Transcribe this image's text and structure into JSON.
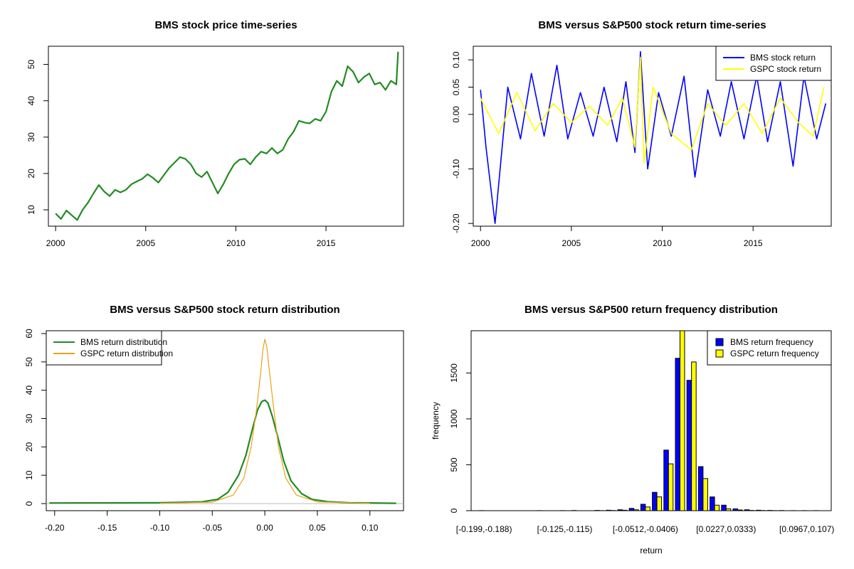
{
  "chart_data": [
    {
      "type": "line",
      "title": "BMS stock price time-series",
      "xlabel": "",
      "ylabel": "",
      "xlim": [
        1999.6,
        2019.3
      ],
      "ylim": [
        5.5,
        55
      ],
      "x_ticks": [
        2000,
        2005,
        2010,
        2015
      ],
      "y_ticks": [
        10,
        20,
        30,
        40,
        50
      ],
      "grid": false,
      "series": [
        {
          "color": "#228B22",
          "x": [
            2000.0,
            2000.3,
            2000.6,
            2000.9,
            2001.2,
            2001.5,
            2001.8,
            2002.1,
            2002.4,
            2002.7,
            2003.0,
            2003.3,
            2003.6,
            2003.9,
            2004.2,
            2004.5,
            2004.8,
            2005.1,
            2005.4,
            2005.7,
            2006.0,
            2006.3,
            2006.6,
            2006.9,
            2007.2,
            2007.5,
            2007.8,
            2008.1,
            2008.4,
            2008.7,
            2009.0,
            2009.3,
            2009.6,
            2009.9,
            2010.2,
            2010.5,
            2010.8,
            2011.1,
            2011.4,
            2011.7,
            2012.0,
            2012.3,
            2012.6,
            2012.9,
            2013.2,
            2013.5,
            2013.8,
            2014.1,
            2014.4,
            2014.7,
            2015.0,
            2015.3,
            2015.6,
            2015.9,
            2016.2,
            2016.5,
            2016.8,
            2017.1,
            2017.4,
            2017.7,
            2018.0,
            2018.3,
            2018.6,
            2018.9,
            2019.0
          ],
          "y": [
            9,
            7.5,
            9.8,
            8.5,
            7.2,
            10,
            12,
            14.5,
            16.8,
            15,
            13.8,
            15.5,
            14.8,
            15.5,
            17,
            17.8,
            18.5,
            19.8,
            18.8,
            17.5,
            19.5,
            21.5,
            23,
            24.5,
            24,
            22.5,
            20,
            19,
            20.5,
            17.5,
            14.5,
            17,
            20,
            22.5,
            23.8,
            24,
            22.5,
            24.5,
            26,
            25.5,
            27,
            25.5,
            26.5,
            29.5,
            31.5,
            34.5,
            34,
            33.8,
            35,
            34.5,
            37,
            42.5,
            45.5,
            44,
            49.5,
            48,
            45,
            46.5,
            47.5,
            44.5,
            45,
            43,
            45.5,
            44.5,
            53.5
          ]
        }
      ]
    },
    {
      "type": "line",
      "title": "BMS versus S&P500 stock return time-series",
      "xlabel": "",
      "ylabel": "",
      "xlim": [
        1999.6,
        2019.3
      ],
      "ylim": [
        -0.205,
        0.125
      ],
      "x_ticks": [
        2000,
        2005,
        2010,
        2015
      ],
      "y_ticks": [
        -0.2,
        -0.1,
        0.0,
        0.05,
        0.1
      ],
      "y_tick_labels": [
        "-0.20",
        "-0.10",
        "0.00",
        "0.05",
        "0.10"
      ],
      "grid": false,
      "legend": "top-right",
      "series": [
        {
          "name": "BMS stock return",
          "color": "#0000FF",
          "x": [
            2000.0,
            2000.3,
            2000.8,
            2001.5,
            2002.2,
            2002.8,
            2003.5,
            2004.2,
            2004.8,
            2005.5,
            2006.2,
            2006.8,
            2007.5,
            2008.0,
            2008.5,
            2008.8,
            2009.2,
            2009.8,
            2010.5,
            2011.2,
            2011.8,
            2012.5,
            2013.2,
            2013.8,
            2014.5,
            2015.2,
            2015.8,
            2016.5,
            2017.2,
            2017.8,
            2018.5,
            2019.0
          ],
          "y": [
            0.045,
            -0.06,
            -0.2,
            0.05,
            -0.045,
            0.075,
            -0.04,
            0.09,
            -0.045,
            0.04,
            -0.04,
            0.05,
            -0.05,
            0.06,
            -0.07,
            0.115,
            -0.1,
            0.04,
            -0.04,
            0.07,
            -0.115,
            0.045,
            -0.04,
            0.06,
            -0.045,
            0.07,
            -0.05,
            0.06,
            -0.095,
            0.07,
            -0.045,
            0.02
          ]
        },
        {
          "name": "GSPC stock return",
          "color": "#FFFF00",
          "x": [
            2000.0,
            2001.0,
            2002.0,
            2003.0,
            2004.0,
            2005.0,
            2006.0,
            2007.0,
            2007.8,
            2008.5,
            2008.8,
            2009.0,
            2009.5,
            2010.5,
            2011.6,
            2012.5,
            2013.5,
            2014.5,
            2015.5,
            2016.5,
            2017.5,
            2018.3,
            2018.9
          ],
          "y": [
            0.03,
            -0.035,
            0.04,
            -0.03,
            0.02,
            -0.015,
            0.015,
            -0.02,
            0.03,
            -0.06,
            0.105,
            -0.09,
            0.05,
            -0.035,
            -0.065,
            0.02,
            -0.02,
            0.02,
            -0.035,
            0.03,
            -0.015,
            -0.04,
            0.05
          ]
        }
      ]
    },
    {
      "type": "line",
      "title": "BMS versus S&P500 stock return distribution",
      "xlabel": "",
      "ylabel": "",
      "xlim": [
        -0.208,
        0.132
      ],
      "ylim": [
        -2.5,
        61
      ],
      "x_ticks": [
        -0.2,
        -0.15,
        -0.1,
        -0.05,
        0.0,
        0.05,
        0.1
      ],
      "x_tick_labels": [
        "-0.20",
        "-0.15",
        "-0.10",
        "-0.05",
        "0.00",
        "0.05",
        "0.10"
      ],
      "y_ticks": [
        0,
        10,
        20,
        30,
        40,
        50,
        60
      ],
      "grid": false,
      "legend": "top-left",
      "series": [
        {
          "name": "BMS return distribution",
          "color": "#228B22",
          "x": [
            -0.205,
            -0.1,
            -0.06,
            -0.045,
            -0.035,
            -0.025,
            -0.018,
            -0.012,
            -0.007,
            -0.003,
            0.0,
            0.003,
            0.007,
            0.012,
            0.018,
            0.025,
            0.035,
            0.045,
            0.06,
            0.08,
            0.125
          ],
          "y": [
            0.2,
            0.3,
            0.6,
            1.5,
            4,
            10,
            17,
            26,
            33,
            36,
            36.5,
            35.5,
            31,
            24,
            15,
            8,
            3.5,
            1.5,
            0.7,
            0.3,
            0.1
          ]
        },
        {
          "name": "GSPC return distribution",
          "color": "#E8A317",
          "x": [
            -0.1,
            -0.05,
            -0.03,
            -0.02,
            -0.013,
            -0.008,
            -0.004,
            -0.002,
            0.0,
            0.002,
            0.004,
            0.008,
            0.013,
            0.02,
            0.03,
            0.05,
            0.1
          ],
          "y": [
            0.1,
            0.5,
            3,
            9,
            20,
            33,
            46,
            54,
            58,
            55,
            48,
            35,
            20,
            9,
            3,
            0.6,
            0.1
          ]
        }
      ]
    },
    {
      "type": "bar",
      "title": "BMS versus S&P500 return frequency distribution",
      "xlabel": "return",
      "ylabel": "frequency",
      "ylim": [
        0,
        1960
      ],
      "y_ticks": [
        0,
        500,
        1000,
        1500
      ],
      "x_tick_labels": [
        "[-0.199,-0.188)",
        "[-0.125,-0.115)",
        "[-0.0512,-0.0406)",
        "[0.0227,0.0333)",
        "[0.0967,0.107)"
      ],
      "grid": false,
      "legend": "top-right",
      "series": [
        {
          "name": "BMS return frequency",
          "color": "#0000FF",
          "values": [
            1,
            0,
            0,
            0,
            0,
            1,
            0,
            1,
            2,
            0,
            3,
            5,
            10,
            25,
            70,
            200,
            660,
            1660,
            1420,
            480,
            150,
            60,
            20,
            10,
            5,
            3,
            2,
            1,
            1,
            1
          ]
        },
        {
          "name": "GSPC return frequency",
          "color": "#FFFF00",
          "values": [
            0,
            0,
            0,
            0,
            0,
            0,
            0,
            0,
            0,
            0,
            1,
            2,
            5,
            10,
            40,
            150,
            510,
            1960,
            1620,
            350,
            60,
            20,
            8,
            3,
            2,
            1,
            0,
            0,
            0,
            0
          ]
        }
      ]
    }
  ]
}
